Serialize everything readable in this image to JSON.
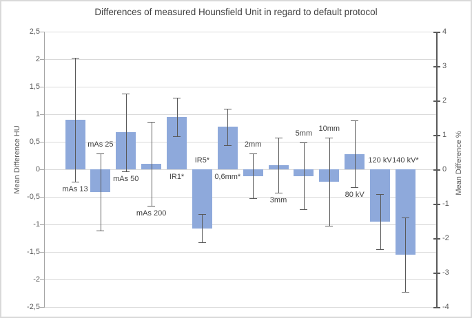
{
  "figure": {
    "title": "Differences of measured Hounsfield Unit in regard to default protocol"
  },
  "chart_data": {
    "type": "bar",
    "title": "Differences of measured Hounsfield Unit in regard to default protocol",
    "ylabel_left": "Mean Difference  HU",
    "ylabel_right": "Mean Difference %",
    "ylim_left": [
      -2.5,
      2.5
    ],
    "ylim_right": [
      -4,
      4
    ],
    "grid": true,
    "legend": "none",
    "left_axis_ticks": [
      "2,5",
      "2",
      "1,5",
      "1",
      "0,5",
      "0",
      "-0,5",
      "-1",
      "-1,5",
      "-2",
      "-2,5"
    ],
    "right_axis_ticks": [
      "4",
      "3",
      "2",
      "1",
      "0",
      "-1",
      "-2",
      "-3",
      "-4"
    ],
    "categories": [
      "mAs 13",
      "mAs 25",
      "mAs 50",
      "mAs 200",
      "IR1*",
      "IR5*",
      "0,6mm*",
      "2mm",
      "3mm",
      "5mm",
      "10mm",
      "80 kV",
      "120 kV",
      "140 kV*"
    ],
    "values": [
      0.9,
      -0.41,
      0.67,
      0.1,
      0.95,
      -1.07,
      0.77,
      -0.12,
      0.07,
      -0.12,
      -0.22,
      0.28,
      -0.95,
      -1.55
    ],
    "errors": [
      1.13,
      0.7,
      0.71,
      0.76,
      0.35,
      0.26,
      0.33,
      0.41,
      0.5,
      0.61,
      0.8,
      0.61,
      0.5,
      0.68
    ],
    "colors": {
      "bar_fill": "#8ea9db",
      "error_bar": "#595959",
      "gridline": "#d9d9d9",
      "left_axis": "#a6a6a6",
      "right_axis": "#595959",
      "tick_label": "#595959",
      "category_label": "#404040",
      "title": "#404040"
    }
  }
}
